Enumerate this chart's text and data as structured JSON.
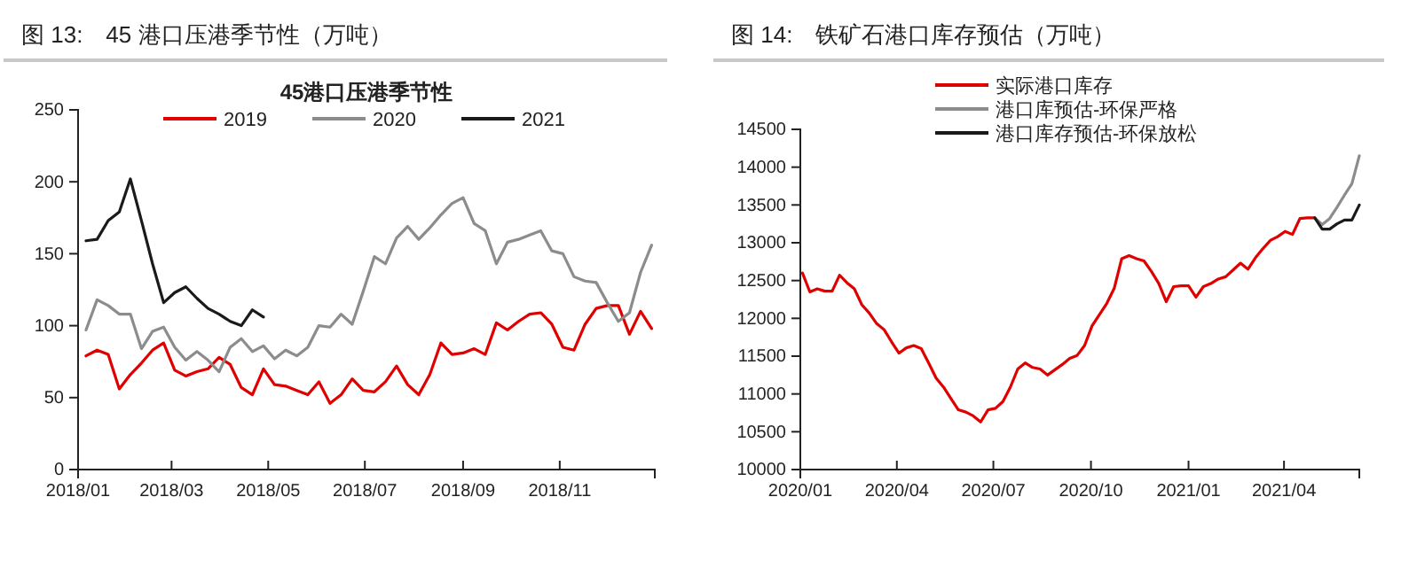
{
  "chart_data": [
    {
      "type": "line",
      "title": "图 13:　45 港口压港季节性（万吨）",
      "subtitle": "45港口压港季节性",
      "xlim": [
        "2018-01-01",
        "2018-12-31"
      ],
      "xticks": [
        {
          "value": "2018-01-01",
          "label": "2018/01"
        },
        {
          "value": "2018-03-01",
          "label": "2018/03"
        },
        {
          "value": "2018-05-01",
          "label": "2018/05"
        },
        {
          "value": "2018-07-01",
          "label": "2018/07"
        },
        {
          "value": "2018-09-01",
          "label": "2018/09"
        },
        {
          "value": "2018-11-01",
          "label": "2018/11"
        }
      ],
      "ylim": [
        0,
        250
      ],
      "yticks": [
        0,
        50,
        100,
        150,
        200,
        250
      ],
      "grid": false,
      "legend": "top",
      "series": [
        {
          "name": "2019",
          "color": "#e00000",
          "x": [
            "2018-01-06",
            "2018-01-13",
            "2018-01-20",
            "2018-01-27",
            "2018-02-03",
            "2018-02-10",
            "2018-02-17",
            "2018-02-24",
            "2018-03-03",
            "2018-03-10",
            "2018-03-17",
            "2018-03-24",
            "2018-03-31",
            "2018-04-07",
            "2018-04-14",
            "2018-04-21",
            "2018-04-28",
            "2018-05-05",
            "2018-05-12",
            "2018-05-19",
            "2018-05-26",
            "2018-06-02",
            "2018-06-09",
            "2018-06-16",
            "2018-06-23",
            "2018-06-30",
            "2018-07-07",
            "2018-07-14",
            "2018-07-21",
            "2018-07-28",
            "2018-08-04",
            "2018-08-11",
            "2018-08-18",
            "2018-08-25",
            "2018-09-01",
            "2018-09-08",
            "2018-09-15",
            "2018-09-22",
            "2018-09-29",
            "2018-10-06",
            "2018-10-13",
            "2018-10-20",
            "2018-10-27",
            "2018-11-03",
            "2018-11-10",
            "2018-11-17",
            "2018-11-24",
            "2018-12-01",
            "2018-12-08",
            "2018-12-15",
            "2018-12-22",
            "2018-12-29"
          ],
          "values": [
            79,
            83,
            80,
            56,
            66,
            74,
            83,
            88,
            69,
            65,
            68,
            70,
            78,
            73,
            57,
            52,
            70,
            59,
            58,
            55,
            52,
            61,
            46,
            52,
            63,
            55,
            54,
            61,
            72,
            59,
            52,
            66,
            88,
            80,
            81,
            84,
            80,
            102,
            97,
            103,
            108,
            109,
            101,
            85,
            83,
            101,
            112,
            114,
            114,
            94,
            110,
            98
          ]
        },
        {
          "name": "2020",
          "color": "#8c8c8c",
          "x": [
            "2018-01-06",
            "2018-01-13",
            "2018-01-20",
            "2018-01-27",
            "2018-02-03",
            "2018-02-10",
            "2018-02-17",
            "2018-02-24",
            "2018-03-03",
            "2018-03-10",
            "2018-03-17",
            "2018-03-24",
            "2018-03-31",
            "2018-04-07",
            "2018-04-14",
            "2018-04-21",
            "2018-04-28",
            "2018-05-05",
            "2018-05-12",
            "2018-05-19",
            "2018-05-26",
            "2018-06-02",
            "2018-06-09",
            "2018-06-16",
            "2018-06-23",
            "2018-06-30",
            "2018-07-07",
            "2018-07-14",
            "2018-07-21",
            "2018-07-28",
            "2018-08-04",
            "2018-08-11",
            "2018-08-18",
            "2018-08-25",
            "2018-09-01",
            "2018-09-08",
            "2018-09-15",
            "2018-09-22",
            "2018-09-29",
            "2018-10-06",
            "2018-10-13",
            "2018-10-20",
            "2018-10-27",
            "2018-11-03",
            "2018-11-10",
            "2018-11-17",
            "2018-11-24",
            "2018-12-01",
            "2018-12-08",
            "2018-12-15",
            "2018-12-22",
            "2018-12-29"
          ],
          "values": [
            97,
            118,
            114,
            108,
            108,
            84,
            96,
            99,
            85,
            76,
            82,
            76,
            68,
            85,
            91,
            82,
            86,
            77,
            83,
            79,
            85,
            100,
            99,
            108,
            101,
            124,
            148,
            143,
            161,
            169,
            160,
            168,
            177,
            185,
            189,
            171,
            166,
            143,
            158,
            160,
            163,
            166,
            152,
            150,
            134,
            131,
            130,
            116,
            103,
            109,
            137,
            156
          ]
        },
        {
          "name": "2021",
          "color": "#1a1a1a",
          "x": [
            "2018-01-06",
            "2018-01-13",
            "2018-01-20",
            "2018-01-27",
            "2018-02-03",
            "2018-02-10",
            "2018-02-17",
            "2018-02-24",
            "2018-03-03",
            "2018-03-10",
            "2018-03-17",
            "2018-03-24",
            "2018-03-31",
            "2018-04-07",
            "2018-04-14",
            "2018-04-21",
            "2018-04-28"
          ],
          "values": [
            159,
            160,
            173,
            179,
            202,
            173,
            143,
            116,
            123,
            127,
            119,
            112,
            108,
            103,
            100,
            111,
            106
          ]
        }
      ]
    },
    {
      "type": "line",
      "title": "图 14:　铁矿石港口库存预估（万吨）",
      "xlim": [
        "2020-01-01",
        "2021-06-11"
      ],
      "xticks": [
        {
          "value": "2020-01-01",
          "label": "2020/01"
        },
        {
          "value": "2020-04-01",
          "label": "2020/04"
        },
        {
          "value": "2020-07-01",
          "label": "2020/07"
        },
        {
          "value": "2020-10-01",
          "label": "2020/10"
        },
        {
          "value": "2021-01-01",
          "label": "2021/01"
        },
        {
          "value": "2021-04-01",
          "label": "2021/04"
        }
      ],
      "ylim": [
        10000,
        14500
      ],
      "yticks": [
        10000,
        10500,
        11000,
        11500,
        12000,
        12500,
        13000,
        13500,
        14000,
        14500
      ],
      "grid": false,
      "legend": "top",
      "series": [
        {
          "name": "实际港口库存",
          "color": "#e00000",
          "x": [
            "2020-01-03",
            "2020-01-10",
            "2020-01-17",
            "2020-01-24",
            "2020-01-31",
            "2020-02-07",
            "2020-02-14",
            "2020-02-21",
            "2020-02-28",
            "2020-03-06",
            "2020-03-13",
            "2020-03-20",
            "2020-03-27",
            "2020-04-03",
            "2020-04-10",
            "2020-04-17",
            "2020-04-24",
            "2020-05-01",
            "2020-05-08",
            "2020-05-15",
            "2020-05-22",
            "2020-05-29",
            "2020-06-05",
            "2020-06-12",
            "2020-06-19",
            "2020-06-26",
            "2020-07-03",
            "2020-07-10",
            "2020-07-17",
            "2020-07-24",
            "2020-07-31",
            "2020-08-07",
            "2020-08-14",
            "2020-08-21",
            "2020-08-28",
            "2020-09-04",
            "2020-09-11",
            "2020-09-18",
            "2020-09-25",
            "2020-10-02",
            "2020-10-09",
            "2020-10-16",
            "2020-10-23",
            "2020-10-30",
            "2020-11-06",
            "2020-11-13",
            "2020-11-20",
            "2020-11-27",
            "2020-12-04",
            "2020-12-11",
            "2020-12-18",
            "2020-12-25",
            "2021-01-01",
            "2021-01-08",
            "2021-01-15",
            "2021-01-22",
            "2021-01-29",
            "2021-02-05",
            "2021-02-12",
            "2021-02-19",
            "2021-02-26",
            "2021-03-05",
            "2021-03-12",
            "2021-03-19",
            "2021-03-26",
            "2021-04-02",
            "2021-04-09",
            "2021-04-16",
            "2021-04-23",
            "2021-04-30"
          ],
          "values": [
            12600,
            12350,
            12390,
            12360,
            12360,
            12570,
            12470,
            12390,
            12180,
            12070,
            11930,
            11850,
            11690,
            11540,
            11610,
            11640,
            11600,
            11410,
            11210,
            11090,
            10940,
            10790,
            10760,
            10710,
            10630,
            10790,
            10810,
            10900,
            11090,
            11330,
            11410,
            11350,
            11330,
            11250,
            11320,
            11390,
            11470,
            11510,
            11640,
            11900,
            12050,
            12200,
            12400,
            12790,
            12830,
            12790,
            12760,
            12620,
            12460,
            12220,
            12420,
            12430,
            12430,
            12280,
            12420,
            12460,
            12520,
            12550,
            12640,
            12730,
            12650,
            12800,
            12920,
            13030,
            13080,
            13150,
            13110,
            13320,
            13330,
            13330
          ]
        },
        {
          "name": "港口库预估-环保严格",
          "color": "#8c8c8c",
          "x": [
            "2021-04-30",
            "2021-05-07",
            "2021-05-14",
            "2021-05-21",
            "2021-05-28",
            "2021-06-04",
            "2021-06-11"
          ],
          "values": [
            13330,
            13240,
            13320,
            13470,
            13630,
            13780,
            14150
          ]
        },
        {
          "name": "港口库存预估-环保放松",
          "color": "#1a1a1a",
          "x": [
            "2021-04-30",
            "2021-05-07",
            "2021-05-14",
            "2021-05-21",
            "2021-05-28",
            "2021-06-04",
            "2021-06-11"
          ],
          "values": [
            13330,
            13180,
            13180,
            13250,
            13300,
            13300,
            13500
          ]
        }
      ]
    }
  ]
}
